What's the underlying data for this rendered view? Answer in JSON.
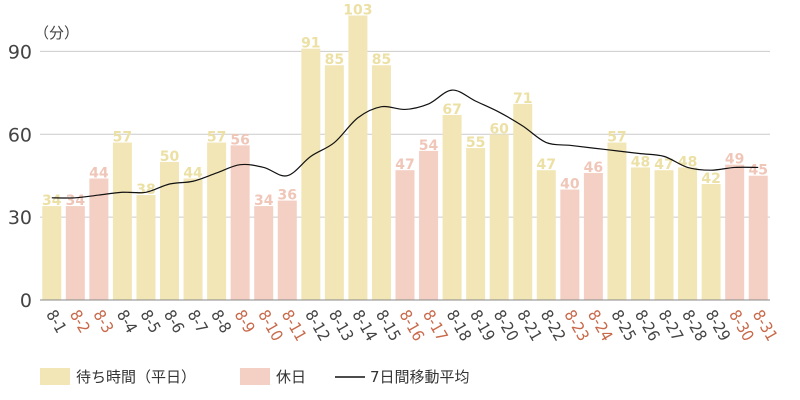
{
  "chart_data": {
    "type": "bar",
    "unit_label": "（分）",
    "ylim": [
      0,
      105
    ],
    "yticks": [
      0,
      30,
      60,
      90
    ],
    "grid": true,
    "legend_position": "bottom-left",
    "categories": [
      "8-1",
      "8-2",
      "8-3",
      "8-4",
      "8-5",
      "8-6",
      "8-7",
      "8-8",
      "8-9",
      "8-10",
      "8-11",
      "8-12",
      "8-13",
      "8-14",
      "8-15",
      "8-16",
      "8-17",
      "8-18",
      "8-19",
      "8-20",
      "8-21",
      "8-22",
      "8-23",
      "8-24",
      "8-25",
      "8-26",
      "8-27",
      "8-28",
      "8-29",
      "8-30",
      "8-31"
    ],
    "values": [
      34,
      34,
      44,
      57,
      38,
      50,
      44,
      57,
      56,
      34,
      36,
      91,
      85,
      103,
      85,
      47,
      54,
      67,
      55,
      60,
      71,
      47,
      40,
      46,
      57,
      48,
      47,
      48,
      42,
      49,
      45
    ],
    "holiday": [
      false,
      true,
      true,
      false,
      false,
      false,
      false,
      false,
      true,
      true,
      true,
      false,
      false,
      false,
      false,
      true,
      true,
      false,
      false,
      false,
      false,
      false,
      true,
      true,
      false,
      false,
      false,
      false,
      false,
      true,
      true
    ],
    "moving_average": [
      37,
      37,
      38,
      39,
      39,
      42,
      43,
      46,
      49,
      48,
      45,
      52,
      57,
      66,
      70,
      69,
      71,
      76,
      72,
      68,
      63,
      57,
      56,
      55,
      54,
      53,
      52,
      48,
      47,
      48,
      48
    ],
    "series": [
      {
        "name": "待ち時間（平日）",
        "color": "#f2e6b6"
      },
      {
        "name": "休日",
        "color": "#f4cfc3"
      },
      {
        "name": "7日間移動平均",
        "color": "#111111"
      }
    ],
    "colors": {
      "weekday_bar": "#f2e6b6",
      "holiday_bar": "#f4cfc3",
      "weekday_label": "#ece0a4",
      "holiday_label": "#f0c6b8",
      "holiday_tick": "#c8694a",
      "weekday_tick": "#444444",
      "grid": "#cccccc",
      "axis": "#888888",
      "line": "#111111"
    }
  }
}
